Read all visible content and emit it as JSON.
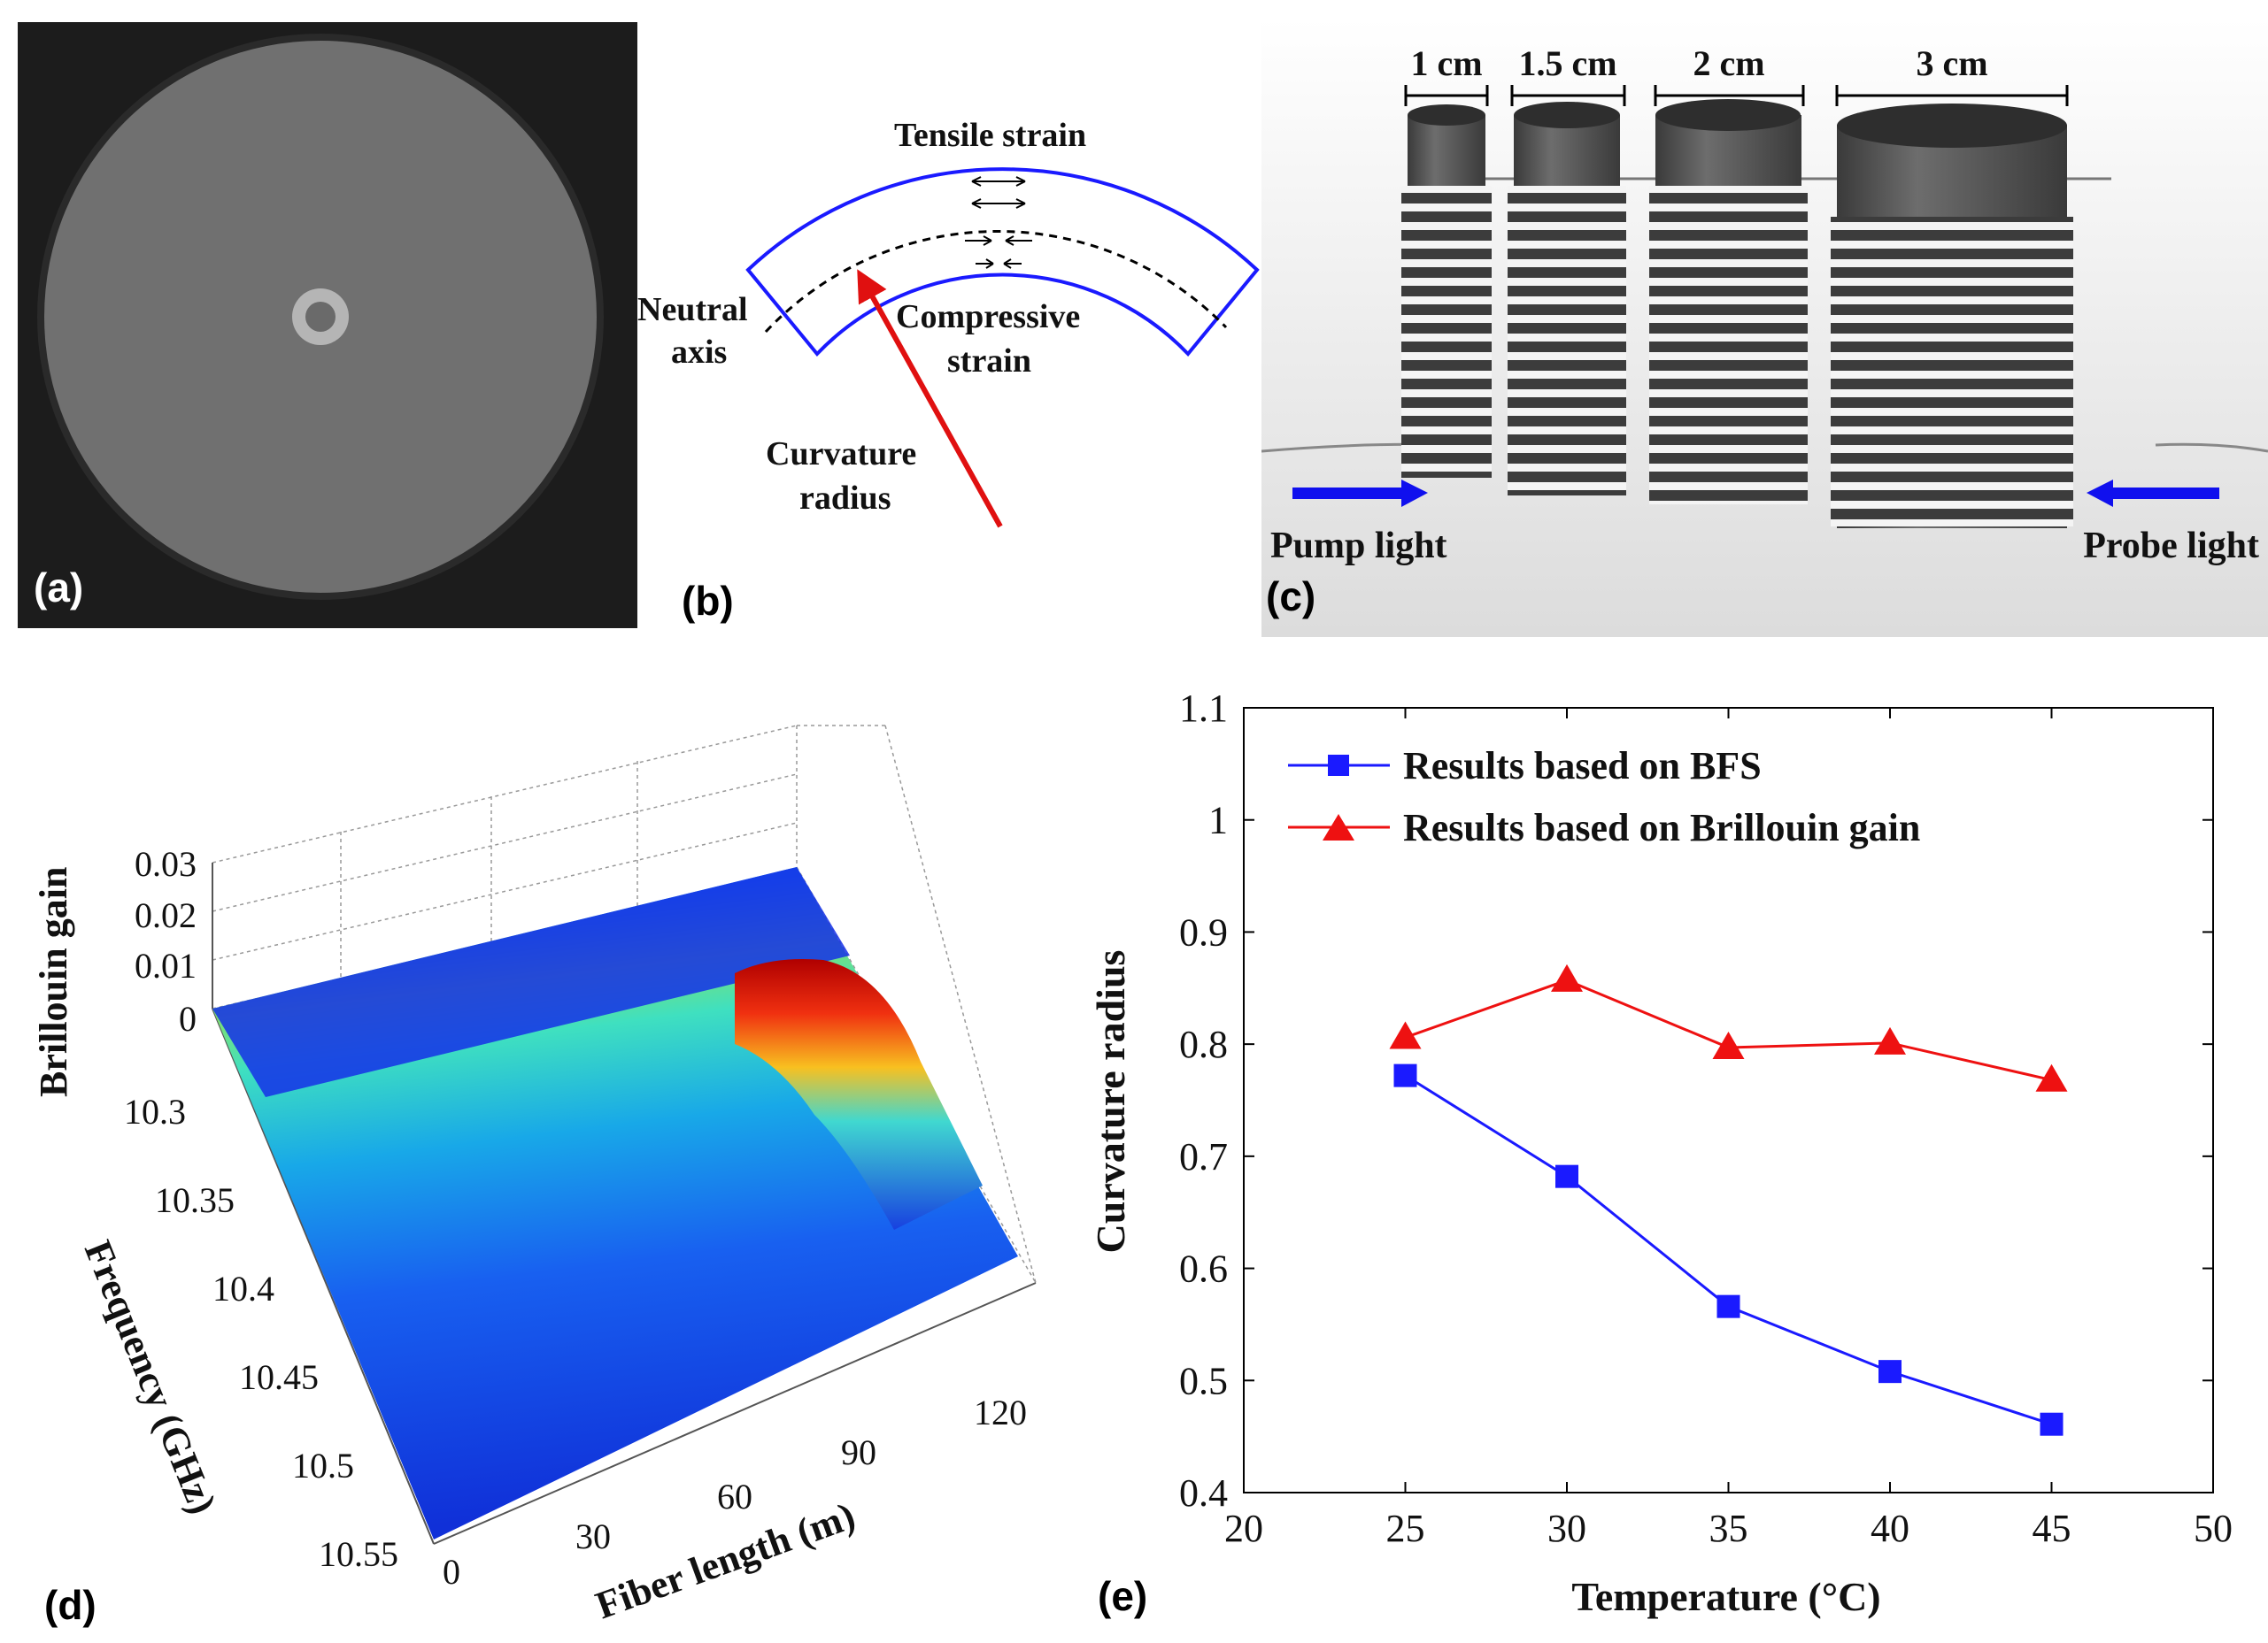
{
  "panels": {
    "a": {
      "label": "(a)"
    },
    "b": {
      "label": "(b)",
      "tensile": "Tensile strain",
      "neutral_line1": "Neutral",
      "neutral_line2": "axis",
      "compressive_line1": "Compressive",
      "compressive_line2": "strain",
      "radius_line1": "Curvature",
      "radius_line2": "radius",
      "colors": {
        "bend": "#1a1aff",
        "arrow": "#e01010"
      }
    },
    "c": {
      "label": "(c)",
      "diameters": [
        "1 cm",
        "1.5 cm",
        "2 cm",
        "3 cm"
      ],
      "pump": "Pump light",
      "probe": "Probe light",
      "colors": {
        "arrow": "#1010ee",
        "cylinder": "#555555"
      }
    },
    "d": {
      "label": "(d)",
      "zlabel": "Brillouin gain",
      "ylabel": "Frequency (GHz)",
      "xlabel": "Fiber length (m)",
      "z_ticks": [
        "0.03",
        "0.02",
        "0.01",
        "0"
      ],
      "y_ticks": [
        "10.3",
        "10.35",
        "10.4",
        "10.45",
        "10.5",
        "10.55"
      ],
      "x_ticks": [
        "0",
        "30",
        "60",
        "90",
        "120"
      ]
    },
    "e": {
      "label": "(e)"
    }
  },
  "chart_data": {
    "type": "line",
    "xlabel": "Temperature (°C)",
    "ylabel": "Curvature radius",
    "xlim": [
      20,
      50
    ],
    "ylim": [
      0.4,
      1.1
    ],
    "x_ticks": [
      "20",
      "25",
      "30",
      "35",
      "40",
      "45",
      "50"
    ],
    "y_ticks": [
      "0.4",
      "0.5",
      "0.6",
      "0.7",
      "0.8",
      "0.9",
      "1",
      "1.1"
    ],
    "legend_position": "top-right",
    "series": [
      {
        "name": "Results based on BFS",
        "marker": "square",
        "color": "#1a1aff",
        "x": [
          25,
          30,
          35,
          40,
          45
        ],
        "values": [
          0.772,
          0.682,
          0.566,
          0.508,
          0.461
        ]
      },
      {
        "name": "Results based on Brillouin gain",
        "marker": "triangle",
        "color": "#ee1111",
        "x": [
          25,
          30,
          35,
          40,
          45
        ],
        "values": [
          0.806,
          0.857,
          0.797,
          0.801,
          0.768
        ]
      }
    ]
  }
}
